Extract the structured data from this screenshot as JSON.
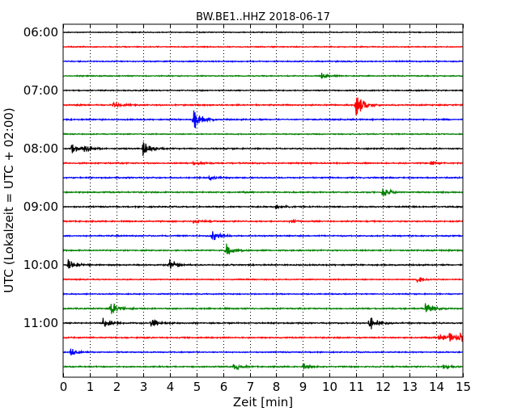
{
  "chart_data": {
    "type": "line",
    "title": "BW.BE1..HHZ 2018-06-17",
    "xlabel": "Zeit  [min]",
    "ylabel": "UTC (Lokalzeit = UTC + 02:00)",
    "xlim": [
      0,
      15
    ],
    "x_ticks": [
      0,
      1,
      2,
      3,
      4,
      5,
      6,
      7,
      8,
      9,
      10,
      11,
      12,
      13,
      14,
      15
    ],
    "x_tick_labels": [
      "0",
      "1",
      "2",
      "3",
      "4",
      "5",
      "6",
      "7",
      "8",
      "9",
      "10",
      "11",
      "12",
      "13",
      "14",
      "15"
    ],
    "y_tick_labels": [
      "06:00",
      "07:00",
      "08:00",
      "09:00",
      "10:00",
      "11:00"
    ],
    "y_tick_rows": [
      0,
      4,
      8,
      12,
      16,
      20
    ],
    "grid": "vertical dotted",
    "trace_colors": [
      "#000000",
      "#ff0000",
      "#0000ff",
      "#008000"
    ],
    "traces": [
      {
        "start": "06:00",
        "color": "#000000",
        "amp": 0.4,
        "events": []
      },
      {
        "start": "06:15",
        "color": "#ff0000",
        "amp": 0.5,
        "events": []
      },
      {
        "start": "06:30",
        "color": "#0000ff",
        "amp": 0.5,
        "events": []
      },
      {
        "start": "06:45",
        "color": "#008000",
        "amp": 0.5,
        "events": [
          {
            "t": 9.7,
            "a": 3
          }
        ]
      },
      {
        "start": "07:00",
        "color": "#000000",
        "amp": 0.5,
        "events": []
      },
      {
        "start": "07:15",
        "color": "#ff0000",
        "amp": 0.6,
        "events": [
          {
            "t": 1.9,
            "a": 3
          },
          {
            "t": 11.0,
            "a": 14
          }
        ]
      },
      {
        "start": "07:30",
        "color": "#0000ff",
        "amp": 0.6,
        "events": [
          {
            "t": 4.9,
            "a": 12
          }
        ]
      },
      {
        "start": "07:45",
        "color": "#008000",
        "amp": 0.5,
        "events": []
      },
      {
        "start": "08:00",
        "color": "#000000",
        "amp": 0.6,
        "events": [
          {
            "t": 0.3,
            "a": 6
          },
          {
            "t": 0.8,
            "a": 5
          },
          {
            "t": 3.0,
            "a": 7
          }
        ]
      },
      {
        "start": "08:15",
        "color": "#ff0000",
        "amp": 0.6,
        "events": [
          {
            "t": 4.9,
            "a": 2
          },
          {
            "t": 13.8,
            "a": 2
          }
        ]
      },
      {
        "start": "08:30",
        "color": "#0000ff",
        "amp": 0.6,
        "events": [
          {
            "t": 5.5,
            "a": 2
          }
        ]
      },
      {
        "start": "08:45",
        "color": "#008000",
        "amp": 0.6,
        "events": [
          {
            "t": 12.0,
            "a": 6
          }
        ]
      },
      {
        "start": "09:00",
        "color": "#000000",
        "amp": 0.6,
        "events": [
          {
            "t": 8.0,
            "a": 2
          }
        ]
      },
      {
        "start": "09:15",
        "color": "#ff0000",
        "amp": 0.6,
        "events": [
          {
            "t": 4.9,
            "a": 2
          },
          {
            "t": 8.5,
            "a": 2
          }
        ]
      },
      {
        "start": "09:30",
        "color": "#0000ff",
        "amp": 0.6,
        "events": [
          {
            "t": 5.6,
            "a": 6
          }
        ]
      },
      {
        "start": "09:45",
        "color": "#008000",
        "amp": 0.6,
        "events": [
          {
            "t": 6.1,
            "a": 7
          }
        ]
      },
      {
        "start": "10:00",
        "color": "#000000",
        "amp": 0.6,
        "events": [
          {
            "t": 0.2,
            "a": 6
          },
          {
            "t": 4.0,
            "a": 6
          }
        ]
      },
      {
        "start": "10:15",
        "color": "#ff0000",
        "amp": 0.5,
        "events": [
          {
            "t": 13.3,
            "a": 3
          }
        ]
      },
      {
        "start": "10:30",
        "color": "#0000ff",
        "amp": 0.5,
        "events": []
      },
      {
        "start": "10:45",
        "color": "#008000",
        "amp": 0.6,
        "events": [
          {
            "t": 1.8,
            "a": 8
          },
          {
            "t": 13.6,
            "a": 6
          }
        ]
      },
      {
        "start": "11:00",
        "color": "#000000",
        "amp": 0.6,
        "events": [
          {
            "t": 1.5,
            "a": 6
          },
          {
            "t": 3.3,
            "a": 6
          },
          {
            "t": 11.5,
            "a": 8
          }
        ]
      },
      {
        "start": "11:15",
        "color": "#ff0000",
        "amp": 0.6,
        "events": [
          {
            "t": 14.1,
            "a": 5
          },
          {
            "t": 14.5,
            "a": 6
          },
          {
            "t": 14.9,
            "a": 5
          }
        ]
      },
      {
        "start": "11:30",
        "color": "#0000ff",
        "amp": 0.5,
        "events": [
          {
            "t": 0.3,
            "a": 4
          }
        ]
      },
      {
        "start": "11:45",
        "color": "#008000",
        "amp": 0.6,
        "events": [
          {
            "t": 6.4,
            "a": 4
          },
          {
            "t": 9.0,
            "a": 3
          },
          {
            "t": 14.3,
            "a": 3
          }
        ]
      }
    ]
  }
}
